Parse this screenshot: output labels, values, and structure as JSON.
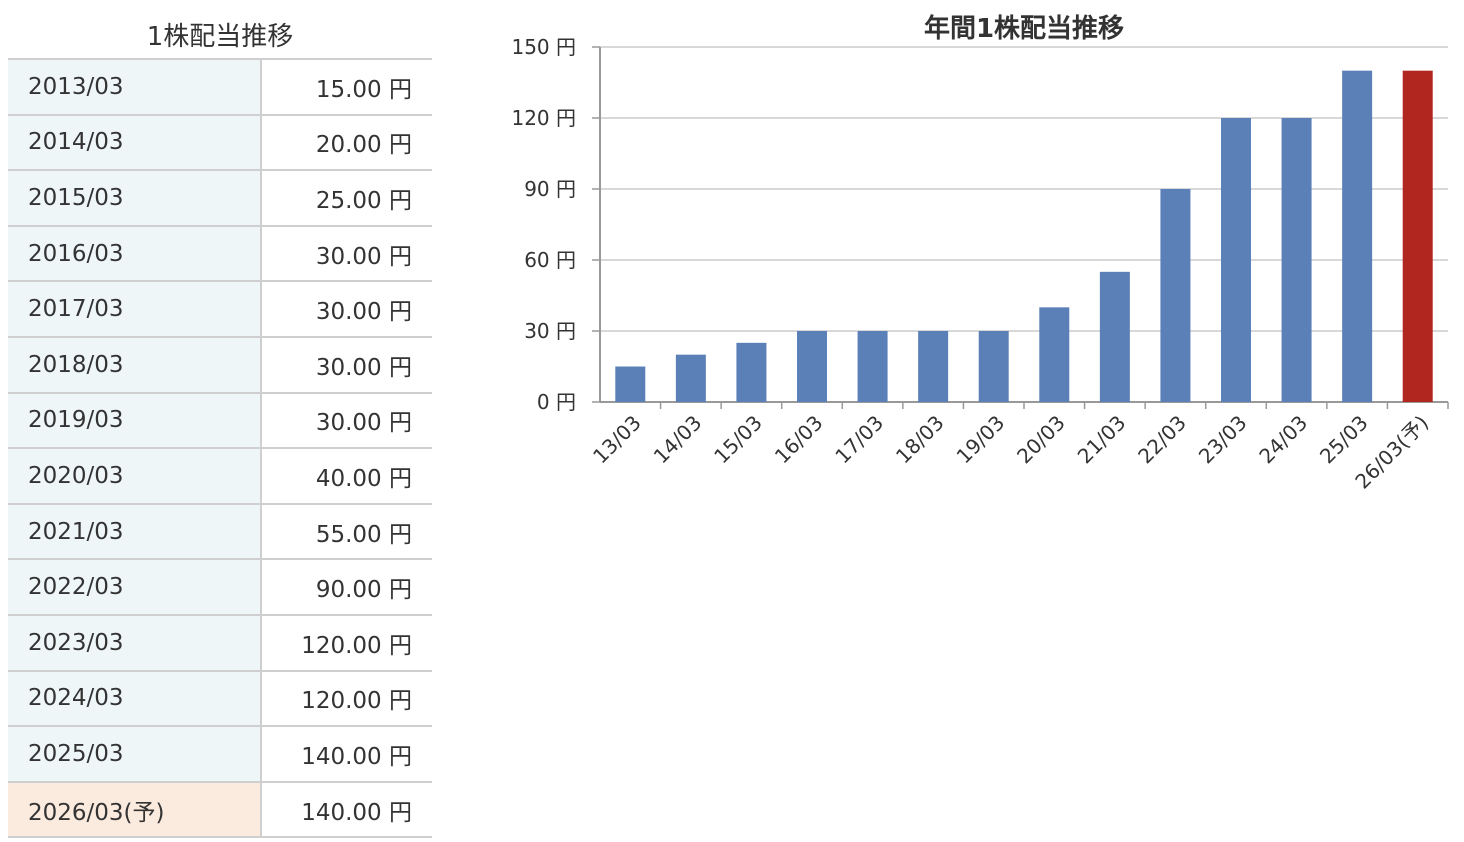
{
  "table": {
    "title": "1株配当推移",
    "rows": [
      {
        "period": "2013/03",
        "value": "15.00 円",
        "forecast": false
      },
      {
        "period": "2014/03",
        "value": "20.00 円",
        "forecast": false
      },
      {
        "period": "2015/03",
        "value": "25.00 円",
        "forecast": false
      },
      {
        "period": "2016/03",
        "value": "30.00 円",
        "forecast": false
      },
      {
        "period": "2017/03",
        "value": "30.00 円",
        "forecast": false
      },
      {
        "period": "2018/03",
        "value": "30.00 円",
        "forecast": false
      },
      {
        "period": "2019/03",
        "value": "30.00 円",
        "forecast": false
      },
      {
        "period": "2020/03",
        "value": "40.00 円",
        "forecast": false
      },
      {
        "period": "2021/03",
        "value": "55.00 円",
        "forecast": false
      },
      {
        "period": "2022/03",
        "value": "90.00 円",
        "forecast": false
      },
      {
        "period": "2023/03",
        "value": "120.00 円",
        "forecast": false
      },
      {
        "period": "2024/03",
        "value": "120.00 円",
        "forecast": false
      },
      {
        "period": "2025/03",
        "value": "140.00 円",
        "forecast": false
      },
      {
        "period": "2026/03(予)",
        "value": "140.00 円",
        "forecast": true
      }
    ]
  },
  "colors": {
    "bar_actual": "#5b80b8",
    "bar_forecast": "#b1261f",
    "grid": "#cccccc",
    "row_bg": "#eef6f8",
    "row_bg_forecast": "#fbeade"
  },
  "chart_data": {
    "type": "bar",
    "title": "年間1株配当推移",
    "xlabel": "",
    "ylabel": "",
    "categories": [
      "13/03",
      "14/03",
      "15/03",
      "16/03",
      "17/03",
      "18/03",
      "19/03",
      "20/03",
      "21/03",
      "22/03",
      "23/03",
      "24/03",
      "25/03",
      "26/03(予)"
    ],
    "values": [
      15,
      20,
      25,
      30,
      30,
      30,
      30,
      40,
      55,
      90,
      120,
      120,
      140,
      140
    ],
    "forecast": [
      false,
      false,
      false,
      false,
      false,
      false,
      false,
      false,
      false,
      false,
      false,
      false,
      false,
      true
    ],
    "ylim": [
      0,
      150
    ],
    "yticks": [
      0,
      30,
      60,
      90,
      120,
      150
    ],
    "ytick_labels": [
      "0 円",
      "30 円",
      "60 円",
      "90 円",
      "120 円",
      "150 円"
    ],
    "grid": true,
    "legend": "none"
  }
}
